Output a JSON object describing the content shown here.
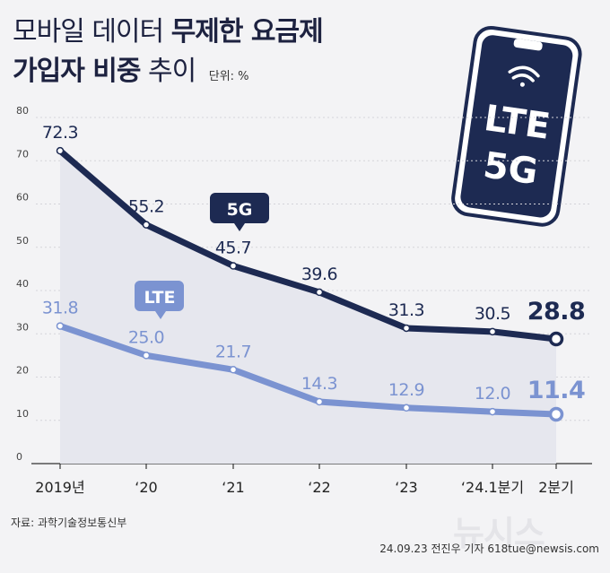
{
  "title": {
    "line1_light": "모바일 데이터",
    "line1_bold": "무제한 요금제",
    "line2_bold": "가입자 비중",
    "line2_light": "추이",
    "unit": "단위: %"
  },
  "phone": {
    "label_top": "LTE",
    "label_bottom": "5G"
  },
  "chart_data": {
    "type": "line",
    "categories": [
      "2019년",
      "‘20",
      "‘21",
      "‘22",
      "‘23",
      "‘24.1분기",
      "2분기"
    ],
    "ylim": [
      0,
      80
    ],
    "yticks": [
      "0",
      "10",
      "20",
      "30",
      "40",
      "50",
      "60",
      "70",
      "80"
    ],
    "series": [
      {
        "name": "5G",
        "values": [
          72.3,
          55.2,
          45.7,
          39.6,
          31.3,
          30.5,
          28.8
        ],
        "labels": [
          "72.3",
          "55.2",
          "45.7",
          "39.6",
          "31.3",
          "30.5",
          "28.8"
        ],
        "color": "#1d2a52"
      },
      {
        "name": "LTE",
        "values": [
          31.8,
          25.0,
          21.7,
          14.3,
          12.9,
          12.0,
          11.4
        ],
        "labels": [
          "31.8",
          "25.0",
          "21.7",
          "14.3",
          "12.9",
          "12.0",
          "11.4"
        ],
        "color": "#7b93d1"
      }
    ]
  },
  "source": "자료: 과학기술정보통신부",
  "credit": "24.09.23 전진우 기자 618tue@newsis.com",
  "watermark": "뉴시스"
}
